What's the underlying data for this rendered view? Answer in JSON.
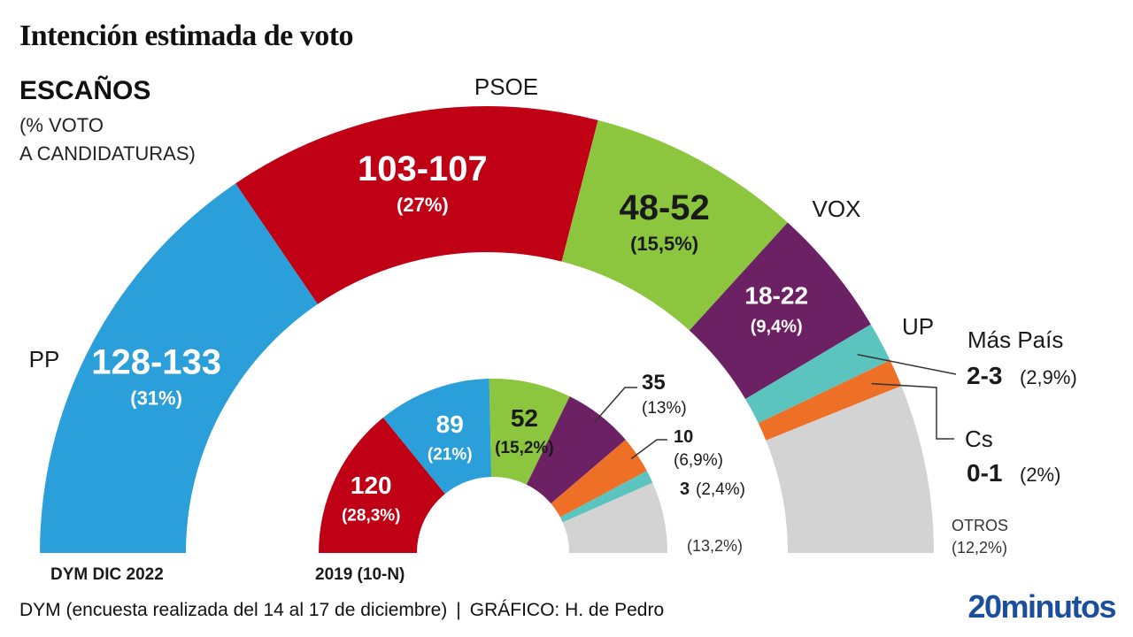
{
  "title": "Intención estimada de voto",
  "subtitle": "ESCAÑOS",
  "subnote_line1": "(% VOTO",
  "subnote_line2": "A CANDIDATURAS)",
  "footer": {
    "source": "DYM (encuesta realizada del 14 al 17 de diciembre)",
    "separator": "|",
    "credit": "GRÁFICO: H. de Pedro"
  },
  "brand": "20minutos",
  "chart_data": [
    {
      "type": "pie",
      "variant": "half-donut",
      "label": "DYM DIC 2022",
      "series": [
        {
          "party": "PP",
          "seats": "128-133",
          "pct": 31,
          "pct_label": "(31%)",
          "color": "#2b9fd9"
        },
        {
          "party": "PSOE",
          "seats": "103-107",
          "pct": 27,
          "pct_label": "(27%)",
          "color": "#c00014"
        },
        {
          "party": "VOX",
          "seats": "48-52",
          "pct": 15.5,
          "pct_label": "(15,5%)",
          "color": "#8cc63f"
        },
        {
          "party": "UP",
          "seats": "18-22",
          "pct": 9.4,
          "pct_label": "(9,4%)",
          "color": "#6b2163"
        },
        {
          "party": "Más País",
          "seats": "2-3",
          "pct": 2.9,
          "pct_label": "(2,9%)",
          "color": "#5bc4bf"
        },
        {
          "party": "Cs",
          "seats": "0-1",
          "pct": 2,
          "pct_label": "(2%)",
          "color": "#ee7026"
        },
        {
          "party": "OTROS",
          "seats": "",
          "pct": 12.2,
          "pct_label": "(12,2%)",
          "color": "#d3d3d3"
        }
      ]
    },
    {
      "type": "pie",
      "variant": "half-donut",
      "label": "2019 (10-N)",
      "series": [
        {
          "party": "PSOE",
          "seats": "120",
          "pct": 28.3,
          "pct_label": "(28,3%)",
          "color": "#c00014"
        },
        {
          "party": "PP",
          "seats": "89",
          "pct": 21,
          "pct_label": "(21%)",
          "color": "#2b9fd9"
        },
        {
          "party": "VOX",
          "seats": "52",
          "pct": 15.2,
          "pct_label": "(15,2%)",
          "color": "#8cc63f"
        },
        {
          "party": "UP",
          "seats": "35",
          "pct": 13,
          "pct_label": "(13%)",
          "color": "#6b2163"
        },
        {
          "party": "Cs",
          "seats": "10",
          "pct": 6.9,
          "pct_label": "(6,9%)",
          "color": "#ee7026"
        },
        {
          "party": "Más País",
          "seats": "3",
          "pct": 2.4,
          "pct_label": "(2,4%)",
          "color": "#5bc4bf"
        },
        {
          "party": "OTROS",
          "seats": "",
          "pct": 13.2,
          "pct_label": "(13,2%)",
          "color": "#d3d3d3"
        }
      ]
    }
  ]
}
